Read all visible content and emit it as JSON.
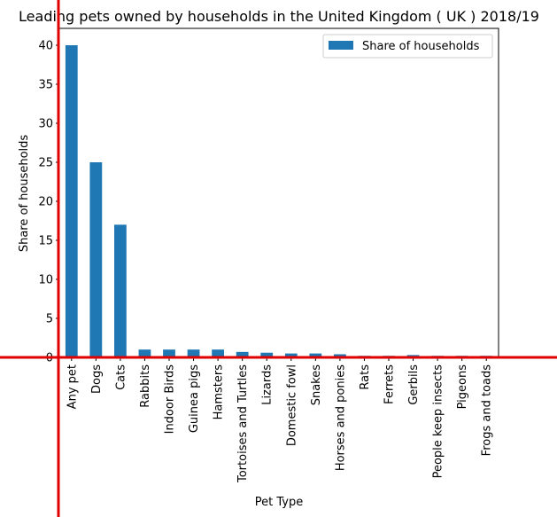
{
  "chart_data": {
    "type": "bar",
    "title": "Leading pets owned by households in the United Kingdom ( UK ) 2018/19",
    "xlabel": "Pet Type",
    "ylabel": "Share of households",
    "ylim": [
      0,
      42
    ],
    "yticks": [
      0,
      5,
      10,
      15,
      20,
      25,
      30,
      35,
      40
    ],
    "grid": false,
    "legend_position": "top-right",
    "categories": [
      "Any pet",
      "Dogs",
      "Cats",
      "Rabbits",
      "Indoor Birds",
      "Guinea pigs",
      "Hamsters",
      "Tortoises and Turtles",
      "Lizards",
      "Domestic fowl",
      "Snakes",
      "Horses and ponies",
      "Rats",
      "Ferrets",
      "Gerbils",
      "People keep insects",
      "Pigeons",
      "Frogs and toads"
    ],
    "series": [
      {
        "name": "Share of households",
        "color": "#1f77b4",
        "values": [
          40,
          25,
          17,
          1,
          1,
          1,
          1,
          0.7,
          0.6,
          0.5,
          0.5,
          0.4,
          0.2,
          0.2,
          0.3,
          0.2,
          0.2,
          0.2
        ]
      }
    ],
    "overlay_color": "#e00000"
  }
}
